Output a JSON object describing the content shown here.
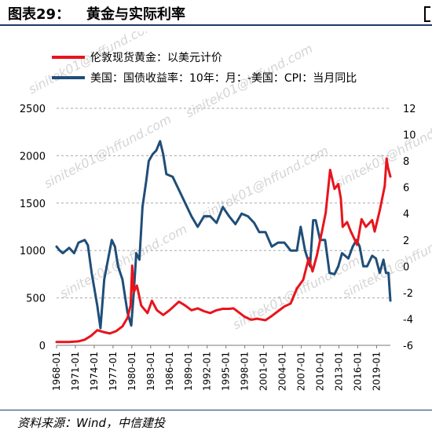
{
  "header": {
    "figure_label": "图表29：",
    "title": "黄金与实际利率"
  },
  "source": "资料来源：Wind，中信建投",
  "watermark": "sinitek01@hffund.com",
  "colors": {
    "gold": "#e8141c",
    "real_rate": "#1f4e79",
    "gridline": "#a8a8a8"
  },
  "chart_data": {
    "type": "line",
    "legend_position": "top-left",
    "grid": true,
    "x_range": [
      1968,
      2021.2
    ],
    "xticks": [
      "1968-01",
      "1971-01",
      "1974-01",
      "1977-01",
      "1980-01",
      "1983-01",
      "1986-01",
      "1989-01",
      "1992-01",
      "1995-01",
      "1998-01",
      "2001-01",
      "2004-01",
      "2007-01",
      "2010-01",
      "2013-01",
      "2016-01",
      "2019-01"
    ],
    "y_left": {
      "range": [
        0,
        2500
      ],
      "ticks": [
        "0",
        "500",
        "1000",
        "1500",
        "2000",
        "2500"
      ]
    },
    "y_right": {
      "range": [
        -6,
        12
      ],
      "ticks": [
        "-6",
        "-4",
        "-2",
        "0",
        "2",
        "4",
        "6",
        "8",
        "10",
        "12"
      ]
    },
    "series": [
      {
        "name": "伦敦现货黄金：以美元计价",
        "axis": "left",
        "points": [
          [
            1968,
            35
          ],
          [
            1970,
            36
          ],
          [
            1971.5,
            42
          ],
          [
            1972.5,
            60
          ],
          [
            1973.5,
            100
          ],
          [
            1974.5,
            160
          ],
          [
            1975.5,
            140
          ],
          [
            1976.5,
            125
          ],
          [
            1977.5,
            150
          ],
          [
            1978.5,
            200
          ],
          [
            1979.3,
            290
          ],
          [
            1979.8,
            420
          ],
          [
            1980.05,
            840
          ],
          [
            1980.3,
            560
          ],
          [
            1980.8,
            630
          ],
          [
            1981.5,
            420
          ],
          [
            1982.5,
            340
          ],
          [
            1983.2,
            470
          ],
          [
            1984,
            370
          ],
          [
            1985,
            320
          ],
          [
            1986,
            370
          ],
          [
            1987.5,
            460
          ],
          [
            1988.5,
            420
          ],
          [
            1989.5,
            370
          ],
          [
            1990.5,
            390
          ],
          [
            1991.5,
            360
          ],
          [
            1992.5,
            340
          ],
          [
            1993.5,
            370
          ],
          [
            1994.5,
            385
          ],
          [
            1995.5,
            385
          ],
          [
            1996.2,
            390
          ],
          [
            1997.2,
            340
          ],
          [
            1998,
            300
          ],
          [
            1999,
            270
          ],
          [
            2000,
            280
          ],
          [
            2001.3,
            265
          ],
          [
            2002.3,
            310
          ],
          [
            2003.3,
            360
          ],
          [
            2004.3,
            410
          ],
          [
            2005.3,
            440
          ],
          [
            2006.3,
            600
          ],
          [
            2007.3,
            690
          ],
          [
            2008.2,
            920
          ],
          [
            2008.8,
            780
          ],
          [
            2009.5,
            950
          ],
          [
            2010.3,
            1200
          ],
          [
            2010.9,
            1400
          ],
          [
            2011.6,
            1850
          ],
          [
            2012.3,
            1650
          ],
          [
            2012.9,
            1700
          ],
          [
            2013.3,
            1550
          ],
          [
            2013.6,
            1250
          ],
          [
            2014.3,
            1300
          ],
          [
            2014.9,
            1200
          ],
          [
            2015.9,
            1060
          ],
          [
            2016.6,
            1330
          ],
          [
            2017.3,
            1250
          ],
          [
            2018.3,
            1320
          ],
          [
            2018.7,
            1200
          ],
          [
            2019.5,
            1420
          ],
          [
            2020.3,
            1680
          ],
          [
            2020.6,
            1970
          ],
          [
            2020.8,
            1880
          ],
          [
            2021.2,
            1780
          ]
        ]
      },
      {
        "name": "美国：国债收益率：10年：月：-美国：CPI：当月同比",
        "axis": "right",
        "points": [
          [
            1968,
            1.5
          ],
          [
            1968.5,
            1.2
          ],
          [
            1969,
            1.0
          ],
          [
            1970,
            1.4
          ],
          [
            1970.8,
            1.0
          ],
          [
            1971.5,
            1.8
          ],
          [
            1972.5,
            2.0
          ],
          [
            1973,
            1.6
          ],
          [
            1973.6,
            -0.5
          ],
          [
            1974.5,
            -3.0
          ],
          [
            1975,
            -4.7
          ],
          [
            1975.6,
            -1.0
          ],
          [
            1976.2,
            0.5
          ],
          [
            1976.8,
            2.0
          ],
          [
            1977.3,
            1.5
          ],
          [
            1977.8,
            0.0
          ],
          [
            1978.5,
            -1.0
          ],
          [
            1979.3,
            -3.5
          ],
          [
            1979.9,
            -4.5
          ],
          [
            1980.3,
            -2.0
          ],
          [
            1980.7,
            1.0
          ],
          [
            1981.2,
            0.5
          ],
          [
            1981.7,
            4.5
          ],
          [
            1982.3,
            6.5
          ],
          [
            1982.7,
            8.0
          ],
          [
            1983.3,
            8.5
          ],
          [
            1983.9,
            8.8
          ],
          [
            1984.5,
            9.5
          ],
          [
            1985,
            8.5
          ],
          [
            1985.5,
            7.0
          ],
          [
            1986.5,
            6.8
          ],
          [
            1987.5,
            5.8
          ],
          [
            1988.5,
            4.8
          ],
          [
            1989.5,
            3.8
          ],
          [
            1990.5,
            3.0
          ],
          [
            1991.5,
            3.8
          ],
          [
            1992.5,
            3.8
          ],
          [
            1993.5,
            3.3
          ],
          [
            1994.5,
            4.5
          ],
          [
            1995.5,
            3.8
          ],
          [
            1996.5,
            3.2
          ],
          [
            1997.5,
            4.0
          ],
          [
            1998.5,
            3.8
          ],
          [
            1999.5,
            3.3
          ],
          [
            2000.3,
            2.6
          ],
          [
            2001.3,
            2.6
          ],
          [
            2002.3,
            1.5
          ],
          [
            2003.3,
            1.8
          ],
          [
            2004.3,
            1.8
          ],
          [
            2005.3,
            1.2
          ],
          [
            2006.3,
            1.2
          ],
          [
            2006.9,
            3.0
          ],
          [
            2007.6,
            1.2
          ],
          [
            2008.4,
            0.0
          ],
          [
            2008.9,
            3.5
          ],
          [
            2009.3,
            3.5
          ],
          [
            2010,
            2.0
          ],
          [
            2010.8,
            2.0
          ],
          [
            2011.5,
            -0.5
          ],
          [
            2012.3,
            -0.6
          ],
          [
            2012.9,
            0.0
          ],
          [
            2013.5,
            1.0
          ],
          [
            2014.5,
            0.6
          ],
          [
            2015.2,
            1.5
          ],
          [
            2015.8,
            2.0
          ],
          [
            2016.3,
            1.5
          ],
          [
            2016.9,
            0.0
          ],
          [
            2017.5,
            0.0
          ],
          [
            2018.3,
            0.8
          ],
          [
            2018.9,
            0.6
          ],
          [
            2019.5,
            -0.5
          ],
          [
            2020.1,
            0.5
          ],
          [
            2020.5,
            -0.5
          ],
          [
            2020.9,
            -0.5
          ],
          [
            2021.2,
            -2.6
          ]
        ]
      }
    ]
  }
}
